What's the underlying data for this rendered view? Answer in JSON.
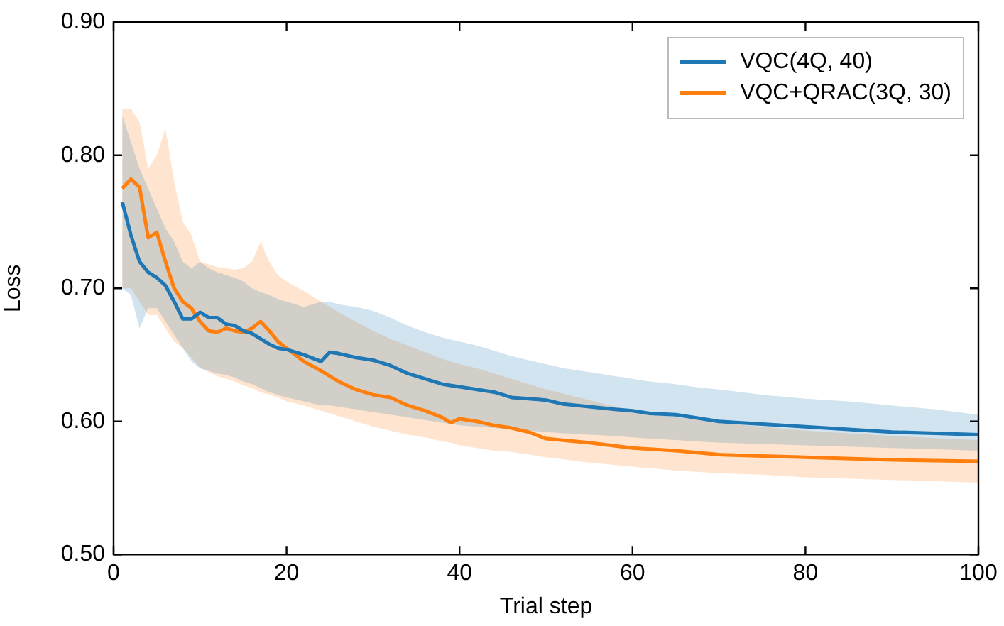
{
  "chart_data": {
    "type": "line",
    "xlabel": "Trial step",
    "ylabel": "Loss",
    "xlim": [
      0,
      100
    ],
    "xticks": [
      0,
      20,
      40,
      60,
      80,
      100
    ],
    "ylim": [
      0.5,
      0.9
    ],
    "yticks": [
      {
        "value": 0.5,
        "label": "0.50"
      },
      {
        "value": 0.6,
        "label": "0.60"
      },
      {
        "value": 0.7,
        "label": "0.70"
      },
      {
        "value": 0.8,
        "label": "0.80"
      },
      {
        "value": 0.9,
        "label": "0.90"
      }
    ],
    "grid": false,
    "legend": "top right",
    "marker": "none",
    "line_style": "solid",
    "series": [
      {
        "name": "VQC(4Q, 40)",
        "color": "#1f77b4",
        "x": [
          1,
          2,
          3,
          4,
          5,
          6,
          7,
          8,
          9,
          10,
          11,
          12,
          13,
          14,
          15,
          16,
          17,
          18,
          19,
          20,
          22,
          24,
          25,
          26,
          28,
          30,
          32,
          34,
          36,
          38,
          40,
          42,
          44,
          46,
          48,
          50,
          52,
          55,
          58,
          60,
          62,
          65,
          67,
          70,
          75,
          80,
          85,
          90,
          95,
          100
        ],
        "values": [
          0.765,
          0.74,
          0.72,
          0.712,
          0.708,
          0.702,
          0.69,
          0.677,
          0.677,
          0.682,
          0.678,
          0.678,
          0.673,
          0.672,
          0.668,
          0.666,
          0.662,
          0.658,
          0.655,
          0.654,
          0.65,
          0.645,
          0.652,
          0.651,
          0.648,
          0.646,
          0.642,
          0.636,
          0.632,
          0.628,
          0.626,
          0.624,
          0.622,
          0.618,
          0.617,
          0.616,
          0.613,
          0.611,
          0.609,
          0.608,
          0.606,
          0.605,
          0.603,
          0.6,
          0.598,
          0.596,
          0.594,
          0.592,
          0.591,
          0.59
        ],
        "lower": [
          0.7,
          0.695,
          0.67,
          0.685,
          0.685,
          0.675,
          0.665,
          0.655,
          0.645,
          0.64,
          0.638,
          0.636,
          0.635,
          0.633,
          0.63,
          0.628,
          0.625,
          0.622,
          0.62,
          0.618,
          0.615,
          0.612,
          0.612,
          0.611,
          0.609,
          0.607,
          0.605,
          0.603,
          0.601,
          0.599,
          0.597,
          0.596,
          0.595,
          0.594,
          0.593,
          0.592,
          0.591,
          0.59,
          0.589,
          0.588,
          0.587,
          0.586,
          0.585,
          0.584,
          0.583,
          0.582,
          0.581,
          0.58,
          0.579,
          0.578
        ],
        "upper": [
          0.83,
          0.81,
          0.79,
          0.775,
          0.76,
          0.745,
          0.735,
          0.72,
          0.715,
          0.72,
          0.715,
          0.712,
          0.71,
          0.708,
          0.705,
          0.7,
          0.697,
          0.695,
          0.692,
          0.69,
          0.686,
          0.69,
          0.69,
          0.688,
          0.686,
          0.683,
          0.678,
          0.672,
          0.667,
          0.663,
          0.66,
          0.657,
          0.653,
          0.649,
          0.646,
          0.643,
          0.64,
          0.637,
          0.634,
          0.632,
          0.63,
          0.628,
          0.626,
          0.624,
          0.62,
          0.617,
          0.615,
          0.612,
          0.609,
          0.605
        ]
      },
      {
        "name": "VQC+QRAC(3Q, 30)",
        "color": "#ff7f0e",
        "x": [
          1,
          2,
          3,
          4,
          5,
          6,
          7,
          8,
          9,
          10,
          11,
          12,
          13,
          14,
          15,
          16,
          17,
          18,
          19,
          20,
          22,
          24,
          26,
          28,
          30,
          32,
          34,
          36,
          38,
          39,
          40,
          42,
          44,
          46,
          48,
          50,
          55,
          60,
          65,
          70,
          75,
          80,
          90,
          100
        ],
        "values": [
          0.775,
          0.782,
          0.776,
          0.738,
          0.742,
          0.72,
          0.7,
          0.69,
          0.685,
          0.675,
          0.668,
          0.667,
          0.67,
          0.668,
          0.667,
          0.67,
          0.675,
          0.668,
          0.66,
          0.655,
          0.645,
          0.638,
          0.63,
          0.624,
          0.62,
          0.618,
          0.612,
          0.608,
          0.603,
          0.599,
          0.602,
          0.6,
          0.597,
          0.595,
          0.592,
          0.587,
          0.584,
          0.58,
          0.578,
          0.575,
          0.574,
          0.573,
          0.571,
          0.57
        ],
        "lower": [
          0.7,
          0.7,
          0.69,
          0.68,
          0.68,
          0.67,
          0.66,
          0.655,
          0.648,
          0.64,
          0.637,
          0.634,
          0.632,
          0.63,
          0.627,
          0.625,
          0.622,
          0.62,
          0.618,
          0.615,
          0.612,
          0.608,
          0.604,
          0.6,
          0.596,
          0.593,
          0.59,
          0.588,
          0.585,
          0.584,
          0.582,
          0.58,
          0.578,
          0.577,
          0.575,
          0.573,
          0.569,
          0.566,
          0.563,
          0.561,
          0.56,
          0.558,
          0.556,
          0.554
        ],
        "upper": [
          0.835,
          0.835,
          0.825,
          0.79,
          0.8,
          0.82,
          0.78,
          0.75,
          0.74,
          0.72,
          0.718,
          0.716,
          0.715,
          0.714,
          0.715,
          0.72,
          0.735,
          0.72,
          0.71,
          0.705,
          0.698,
          0.69,
          0.682,
          0.675,
          0.668,
          0.662,
          0.657,
          0.652,
          0.647,
          0.645,
          0.643,
          0.64,
          0.636,
          0.632,
          0.628,
          0.624,
          0.616,
          0.608,
          0.603,
          0.599,
          0.596,
          0.593,
          0.589,
          0.586
        ]
      }
    ]
  }
}
